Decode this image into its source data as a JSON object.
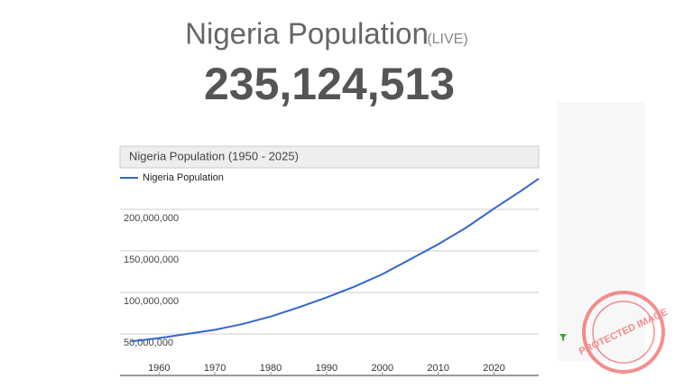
{
  "header": {
    "title": "Nigeria Population",
    "live": "(LIVE)",
    "count": "235,124,513"
  },
  "watermark": "PROTECTED IMAGE",
  "chart_data": {
    "type": "line",
    "title": "Nigeria Population (1950 - 2025)",
    "x": [
      1955,
      1960,
      1965,
      1970,
      1975,
      1980,
      1985,
      1990,
      1995,
      2000,
      2005,
      2010,
      2015,
      2020,
      2025,
      2028
    ],
    "series": [
      {
        "name": "Nigeria Population",
        "color": "#3366cc",
        "values": [
          41000000,
          45000000,
          50000000,
          55000000,
          62000000,
          71000000,
          82000000,
          94000000,
          107000000,
          122000000,
          140000000,
          158000000,
          178000000,
          201000000,
          223000000,
          237000000
        ]
      }
    ],
    "xlim": [
      1953,
      2028
    ],
    "xticks": [
      1960,
      1970,
      1980,
      1990,
      2000,
      2010,
      2020
    ],
    "ylim": [
      0,
      250000000
    ],
    "yticks": [
      {
        "value": 50000000,
        "label": "50,000,000"
      },
      {
        "value": 100000000,
        "label": "100,000,000"
      },
      {
        "value": 150000000,
        "label": "150,000,000"
      },
      {
        "value": 200000000,
        "label": "200,000,000"
      }
    ],
    "grid": true
  }
}
